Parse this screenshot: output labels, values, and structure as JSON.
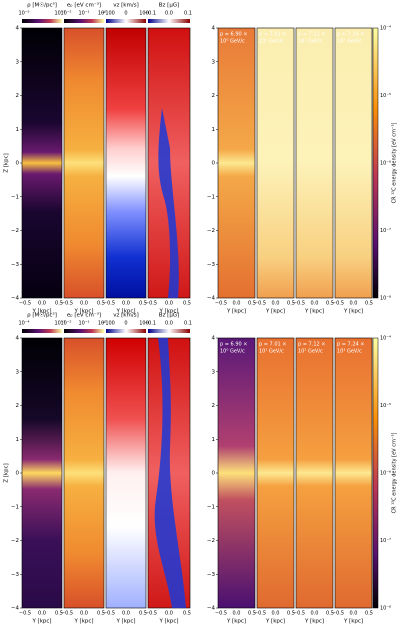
{
  "figures": [
    {
      "columns": [
        {
          "label": "ρ [M☉/pc³]",
          "ticks": [
            "10⁻⁵",
            "10⁻²"
          ]
        },
        {
          "label": "eₚ [eV cm⁻³]",
          "ticks": [
            "10⁻²",
            "10⁻¹",
            "10⁰"
          ]
        },
        {
          "label": "vz [km/s]",
          "ticks": [
            "−100",
            "0",
            "100"
          ]
        },
        {
          "label": "Bz [μG]",
          "ticks": [
            "−0.1",
            "0.0",
            "0.1"
          ]
        }
      ],
      "momentum_panels": [
        {
          "line1": "p = 6.90 ×",
          "line2": "10⁰ GeV/c"
        },
        {
          "line1": "p = 7.01 ×",
          "line2": "10¹ GeV/c"
        },
        {
          "line1": "p = 7.12 ×",
          "line2": "10² GeV/c"
        },
        {
          "line1": "p = 7.24 ×",
          "line2": "10³ GeV/c"
        }
      ],
      "z_label": "Z [kpc]",
      "z_ticks": [
        "4",
        "3",
        "2",
        "1",
        "0",
        "−1",
        "−2",
        "−3",
        "−4"
      ],
      "y_label": "Y [kpc]",
      "y_ticks": [
        "−0.5",
        "0.0",
        "0.5"
      ],
      "colorbar": {
        "label": "CR ¹²C energy density [eV cm⁻³]",
        "ticks": [
          "10⁻⁴",
          "10⁻⁵",
          "10⁻⁶",
          "10⁻⁷",
          "10⁻⁸"
        ]
      }
    },
    {
      "columns": [
        {
          "label": "ρ [M☉/pc³]",
          "ticks": [
            "10⁻⁴",
            "10⁻²"
          ]
        },
        {
          "label": "eₚ [eV cm⁻³]",
          "ticks": [
            "10⁻²",
            "10⁻¹",
            "10⁰"
          ]
        },
        {
          "label": "vz [km/s]",
          "ticks": [
            "−100",
            "0",
            "100"
          ]
        },
        {
          "label": "Bz [μG]",
          "ticks": [
            "−0.1",
            "0.0",
            "0.1"
          ]
        }
      ],
      "momentum_panels": [
        {
          "line1": "p = 6.90 ×",
          "line2": "10⁰ GeV/c"
        },
        {
          "line1": "p = 7.01 ×",
          "line2": "10¹ GeV/c"
        },
        {
          "line1": "p = 7.12 ×",
          "line2": "10² GeV/c"
        },
        {
          "line1": "p = 7.24 ×",
          "line2": "10³ GeV/c"
        }
      ],
      "z_label": "Z [kpc]",
      "z_ticks": [
        "4",
        "3",
        "2",
        "1",
        "0",
        "−1",
        "−2",
        "−3",
        "−4"
      ],
      "y_label": "Y [kpc]",
      "y_ticks": [
        "−0.5",
        "0.0",
        "0.5"
      ],
      "colorbar": {
        "label": "CR ¹²C energy density [eV cm⁻³]",
        "ticks": [
          "10⁻⁴",
          "10⁻⁵",
          "10⁻⁶",
          "10⁻⁷",
          "10⁻⁸"
        ]
      }
    }
  ]
}
